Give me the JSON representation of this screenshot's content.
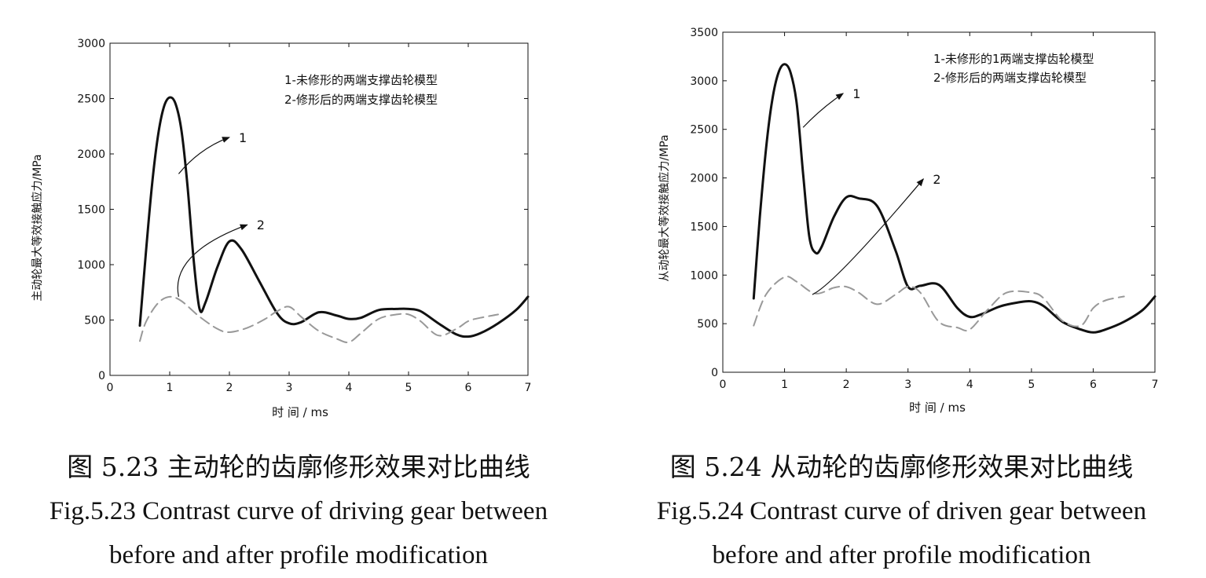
{
  "chart_data": [
    {
      "type": "line",
      "ylabel": "主动轮最大等效接触应力/MPa",
      "xlabel": "时 间 / ms",
      "xlim": [
        0,
        7
      ],
      "ylim": [
        0,
        3000
      ],
      "xticks": [
        0,
        1,
        2,
        3,
        4,
        5,
        6,
        7
      ],
      "yticks": [
        0,
        500,
        1000,
        1500,
        2000,
        2500,
        3000
      ],
      "grid": false,
      "legend": {
        "placement": "top-right",
        "lines": [
          "1-未修形的两端支撑齿轮模型",
          "2-修形后的两端支撑齿轮模型"
        ]
      },
      "series": [
        {
          "name": "1",
          "style": "solid",
          "color": "#111111",
          "x": [
            0.5,
            0.6,
            0.7,
            0.8,
            0.9,
            1.0,
            1.1,
            1.2,
            1.3,
            1.4,
            1.5,
            1.6,
            1.8,
            2.0,
            2.2,
            2.5,
            2.8,
            3.0,
            3.2,
            3.5,
            3.8,
            4.0,
            4.2,
            4.5,
            4.8,
            5.0,
            5.2,
            5.5,
            5.8,
            6.0,
            6.2,
            6.5,
            6.8,
            7.0
          ],
          "y": [
            450,
            1100,
            1700,
            2150,
            2420,
            2510,
            2450,
            2200,
            1700,
            1050,
            600,
            660,
            980,
            1210,
            1140,
            850,
            560,
            470,
            480,
            570,
            540,
            510,
            520,
            590,
            600,
            600,
            580,
            470,
            370,
            350,
            380,
            470,
            590,
            710
          ]
        },
        {
          "name": "2",
          "style": "dashed",
          "color": "#999999",
          "x": [
            0.5,
            0.6,
            0.8,
            1.0,
            1.2,
            1.5,
            1.8,
            2.0,
            2.3,
            2.6,
            2.8,
            3.0,
            3.2,
            3.5,
            3.8,
            4.0,
            4.2,
            4.5,
            4.8,
            5.0,
            5.2,
            5.5,
            5.8,
            6.0,
            6.2,
            6.5
          ],
          "y": [
            310,
            480,
            650,
            710,
            670,
            530,
            420,
            390,
            430,
            510,
            580,
            620,
            530,
            400,
            330,
            300,
            380,
            510,
            550,
            550,
            490,
            360,
            420,
            490,
            520,
            550
          ]
        }
      ],
      "annotations": [
        {
          "label": "1",
          "path": [
            [
              1.15,
              1820
            ],
            [
              1.5,
              2050
            ],
            [
              2.0,
              2150
            ]
          ]
        },
        {
          "label": "2",
          "path": [
            [
              1.15,
              710
            ],
            [
              1.0,
              1100
            ],
            [
              2.3,
              1360
            ]
          ]
        }
      ]
    },
    {
      "type": "line",
      "ylabel": "从动轮最大等效接触应力/MPa",
      "xlabel": "时 间 / ms",
      "xlim": [
        0,
        7
      ],
      "ylim": [
        0,
        3500
      ],
      "xticks": [
        0,
        1,
        2,
        3,
        4,
        5,
        6,
        7
      ],
      "yticks": [
        0,
        500,
        1000,
        1500,
        2000,
        2500,
        3000,
        3500
      ],
      "grid": false,
      "legend": {
        "placement": "top-right",
        "lines": [
          "1-未修形的1两端支撑齿轮模型",
          "2-修形后的两端支撑齿轮模型"
        ]
      },
      "series": [
        {
          "name": "1",
          "style": "solid",
          "color": "#111111",
          "x": [
            0.5,
            0.6,
            0.7,
            0.8,
            0.9,
            1.0,
            1.1,
            1.2,
            1.3,
            1.4,
            1.5,
            1.6,
            1.8,
            2.0,
            2.2,
            2.5,
            2.8,
            3.0,
            3.2,
            3.5,
            3.8,
            4.0,
            4.2,
            4.5,
            4.8,
            5.0,
            5.2,
            5.5,
            5.8,
            6.0,
            6.2,
            6.5,
            6.8,
            7.0
          ],
          "y": [
            760,
            1600,
            2300,
            2800,
            3080,
            3170,
            3080,
            2750,
            2050,
            1400,
            1230,
            1290,
            1600,
            1800,
            1790,
            1710,
            1250,
            880,
            890,
            900,
            660,
            570,
            600,
            680,
            720,
            730,
            680,
            520,
            440,
            410,
            440,
            520,
            640,
            780
          ]
        },
        {
          "name": "2",
          "style": "dashed",
          "color": "#999999",
          "x": [
            0.5,
            0.7,
            1.0,
            1.2,
            1.5,
            1.8,
            2.0,
            2.2,
            2.5,
            2.8,
            3.0,
            3.2,
            3.5,
            3.8,
            4.0,
            4.3,
            4.6,
            5.0,
            5.2,
            5.5,
            5.8,
            6.0,
            6.2,
            6.5
          ],
          "y": [
            480,
            800,
            980,
            930,
            810,
            870,
            880,
            820,
            700,
            800,
            880,
            820,
            520,
            460,
            440,
            650,
            820,
            820,
            760,
            530,
            480,
            660,
            740,
            780
          ]
        }
      ],
      "annotations": [
        {
          "label": "1",
          "path": [
            [
              1.3,
              2520
            ],
            [
              1.6,
              2720
            ],
            [
              1.95,
              2870
            ]
          ]
        },
        {
          "label": "2",
          "path": [
            [
              1.45,
              800
            ],
            [
              1.8,
              900
            ],
            [
              3.25,
              1990
            ]
          ]
        }
      ]
    }
  ],
  "captions": [
    {
      "cn": "图 5.23  主动轮的齿廓修形效果对比曲线",
      "en1": "Fig.5.23 Contrast curve of driving gear between",
      "en2": "before and after profile modification"
    },
    {
      "cn": "图 5.24  从动轮的齿廓修形效果对比曲线",
      "en1": "Fig.5.24 Contrast curve of driven gear between",
      "en2": "before and after profile modification"
    }
  ]
}
